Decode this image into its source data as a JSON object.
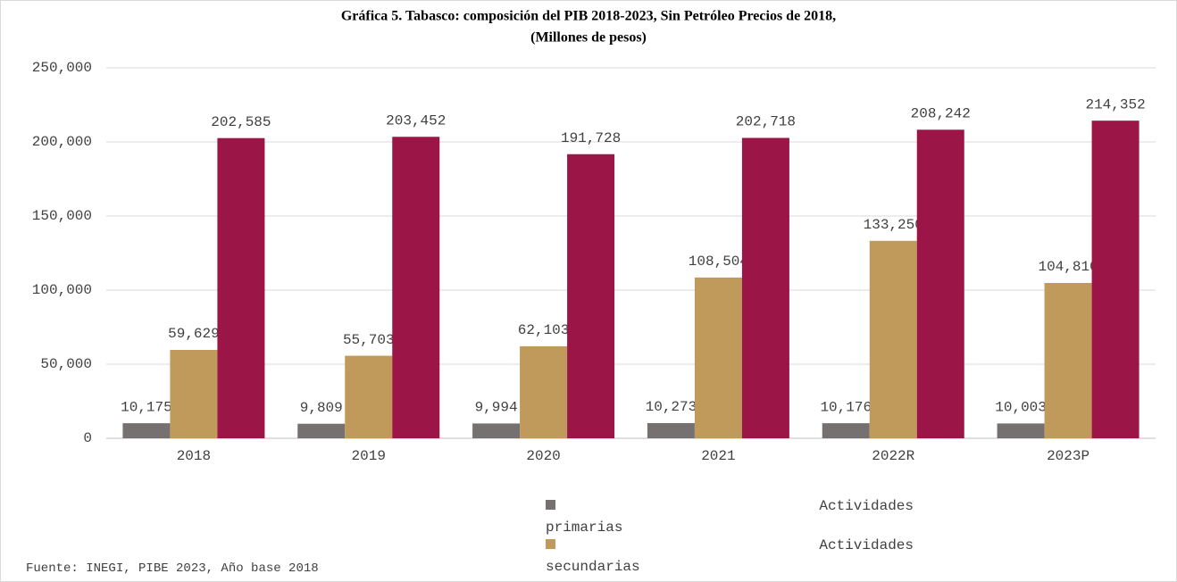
{
  "chart_data": {
    "type": "bar",
    "title": "Gráfica 5. Tabasco: composición del PIB 2018-2023, Sin Petróleo Precios de 2018,",
    "subtitle": "(Millones de pesos)",
    "categories": [
      "2018",
      "2019",
      "2020",
      "2021",
      "2022R",
      "2023P"
    ],
    "series": [
      {
        "name": "Actividades primarias",
        "color": "#767171",
        "values": [
          10175,
          9809,
          9994,
          10273,
          10176,
          10003
        ],
        "value_labels": [
          "10,175",
          "9,809",
          "9,994",
          "10,273",
          "10,176",
          "10,003"
        ]
      },
      {
        "name": "Actividades secundarias",
        "color": "#bf9a5a",
        "values": [
          59629,
          55703,
          62103,
          108504,
          133250,
          104810
        ],
        "value_labels": [
          "59,629",
          "55,703",
          "62,103",
          "108,504",
          "133,250",
          "104,810"
        ]
      },
      {
        "color": "#9b1647",
        "values": [
          202585,
          203452,
          191728,
          202718,
          208242,
          214352
        ],
        "value_labels": [
          "202,585",
          "203,452",
          "191,728",
          "202,718",
          "208,242",
          "214,352"
        ]
      }
    ],
    "ylim": [
      0,
      250000
    ],
    "yticks": [
      0,
      {
        "value": 50000,
        "label": "50,000"
      },
      {
        "value": 100000,
        "label": "100,000"
      },
      {
        "value": 150000,
        "label": "150,000"
      },
      {
        "value": 200000,
        "label": "200,000"
      },
      {
        "value": 250000,
        "label": "250,000"
      }
    ],
    "grid": true,
    "source": "Fuente: INEGI, PIBE 2023, Año base 2018"
  }
}
